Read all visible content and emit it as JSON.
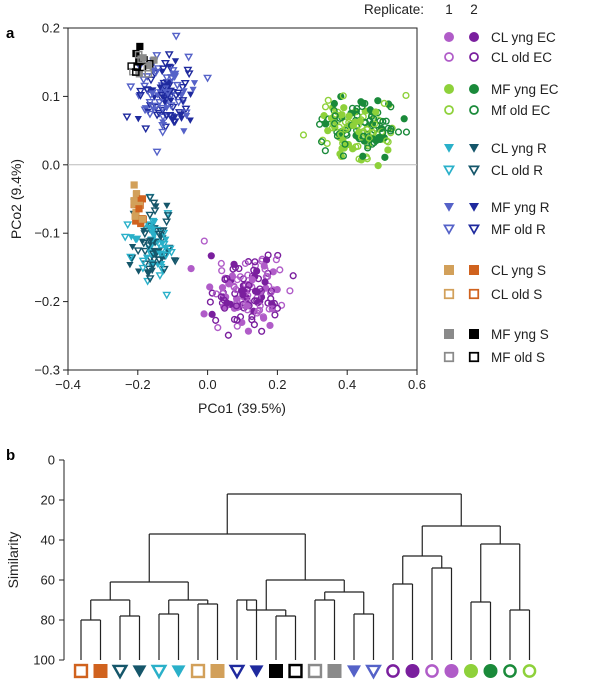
{
  "legend": {
    "header": "Replicate:",
    "replicates": [
      "1",
      "2"
    ],
    "entries": [
      {
        "label": "CL yng EC",
        "shape": "circle-filled",
        "colors": [
          "#b05cc8",
          "#7a1f9e"
        ]
      },
      {
        "label": "CL old EC",
        "shape": "circle-open",
        "colors": [
          "#b05cc8",
          "#7a1f9e"
        ]
      },
      {
        "label": "MF yng EC",
        "shape": "circle-filled",
        "colors": [
          "#8ed13a",
          "#1a8a3a"
        ]
      },
      {
        "label": "Mf old EC",
        "shape": "circle-open",
        "colors": [
          "#8ed13a",
          "#1a8a3a"
        ]
      },
      {
        "label": "CL yng R",
        "shape": "tri-filled",
        "colors": [
          "#2ab0c9",
          "#15566a"
        ]
      },
      {
        "label": "CL old R",
        "shape": "tri-open",
        "colors": [
          "#2ab0c9",
          "#15566a"
        ]
      },
      {
        "label": "MF yng R",
        "shape": "tri-filled",
        "colors": [
          "#5562c8",
          "#1f2a9e"
        ]
      },
      {
        "label": "MF old R",
        "shape": "tri-open",
        "colors": [
          "#5562c8",
          "#1f2a9e"
        ]
      },
      {
        "label": "CL yng S",
        "shape": "square-filled",
        "colors": [
          "#d2a05a",
          "#d0621e"
        ]
      },
      {
        "label": "CL old S",
        "shape": "square-open",
        "colors": [
          "#d2a05a",
          "#d0621e"
        ]
      },
      {
        "label": "MF yng S",
        "shape": "square-filled",
        "colors": [
          "#8a8a8a",
          "#000000"
        ]
      },
      {
        "label": "MF old S",
        "shape": "square-open",
        "colors": [
          "#8a8a8a",
          "#000000"
        ]
      }
    ]
  },
  "chart_data": [
    {
      "type": "scatter",
      "panel": "a",
      "xlabel": "PCo1 (39.5%)",
      "ylabel": "PCo2 (9.4%)",
      "xlim": [
        -0.4,
        0.6
      ],
      "ylim": [
        -0.3,
        0.2
      ],
      "xticks": [
        "−0.4",
        "−0.2",
        "0.0",
        "0.2",
        "0.4",
        "0.6"
      ],
      "yticks": [
        "0.2",
        "0.1",
        "0.0",
        "−0.1",
        "−0.2",
        "−0.3"
      ],
      "reference_line_y": 0.0,
      "clusters": [
        {
          "group": "MF R",
          "shape": "tri-open",
          "colors": [
            "#5562c8",
            "#1f2a9e"
          ],
          "center": [
            -0.12,
            0.1
          ],
          "spread": [
            0.06,
            0.04
          ],
          "n": 130
        },
        {
          "group": "MF S",
          "shape": "square-open",
          "colors": [
            "#8a8a8a",
            "#000000"
          ],
          "center": [
            -0.19,
            0.15
          ],
          "spread": [
            0.02,
            0.015
          ],
          "n": 20
        },
        {
          "group": "CL R",
          "shape": "tri-open",
          "colors": [
            "#2ab0c9",
            "#15566a"
          ],
          "center": [
            -0.16,
            -0.12
          ],
          "spread": [
            0.04,
            0.04
          ],
          "n": 110
        },
        {
          "group": "CL S",
          "shape": "square-filled",
          "colors": [
            "#d2a05a",
            "#d0621e"
          ],
          "center": [
            -0.2,
            -0.06
          ],
          "spread": [
            0.015,
            0.025
          ],
          "n": 22
        },
        {
          "group": "CL EC",
          "shape": "circle-open",
          "colors": [
            "#b05cc8",
            "#7a1f9e"
          ],
          "center": [
            0.12,
            -0.19
          ],
          "spread": [
            0.08,
            0.04
          ],
          "n": 150
        },
        {
          "group": "MF EC",
          "shape": "circle-open",
          "colors": [
            "#8ed13a",
            "#1a8a3a"
          ],
          "center": [
            0.43,
            0.05
          ],
          "spread": [
            0.08,
            0.03
          ],
          "n": 170
        }
      ]
    },
    {
      "type": "dendrogram",
      "panel": "b",
      "ylabel": "Similarity",
      "ylim": [
        100,
        0
      ],
      "yticks": [
        0,
        20,
        40,
        60,
        80,
        100
      ],
      "leaves": [
        {
          "shape": "square-open",
          "color": "#d0621e"
        },
        {
          "shape": "square-filled",
          "color": "#d0621e"
        },
        {
          "shape": "tri-open",
          "color": "#15566a"
        },
        {
          "shape": "tri-filled",
          "color": "#15566a"
        },
        {
          "shape": "tri-open",
          "color": "#2ab0c9"
        },
        {
          "shape": "tri-filled",
          "color": "#2ab0c9"
        },
        {
          "shape": "square-open",
          "color": "#d2a05a"
        },
        {
          "shape": "square-filled",
          "color": "#d2a05a"
        },
        {
          "shape": "tri-open",
          "color": "#1f2a9e"
        },
        {
          "shape": "tri-filled",
          "color": "#1f2a9e"
        },
        {
          "shape": "square-filled",
          "color": "#000000"
        },
        {
          "shape": "square-open",
          "color": "#000000"
        },
        {
          "shape": "square-open",
          "color": "#8a8a8a"
        },
        {
          "shape": "square-filled",
          "color": "#8a8a8a"
        },
        {
          "shape": "tri-filled",
          "color": "#5562c8"
        },
        {
          "shape": "tri-open",
          "color": "#5562c8"
        },
        {
          "shape": "circle-open",
          "color": "#7a1f9e"
        },
        {
          "shape": "circle-filled",
          "color": "#7a1f9e"
        },
        {
          "shape": "circle-open",
          "color": "#b05cc8"
        },
        {
          "shape": "circle-filled",
          "color": "#b05cc8"
        },
        {
          "shape": "circle-filled",
          "color": "#8ed13a"
        },
        {
          "shape": "circle-filled",
          "color": "#1a8a3a"
        },
        {
          "shape": "circle-open",
          "color": "#1a8a3a"
        },
        {
          "shape": "circle-open",
          "color": "#8ed13a"
        }
      ],
      "merges": [
        {
          "a": "L0",
          "b": "L1",
          "h": 80,
          "id": "c1"
        },
        {
          "a": "L2",
          "b": "L3",
          "h": 78,
          "id": "c2"
        },
        {
          "a": "L4",
          "b": "L5",
          "h": 77,
          "id": "c3"
        },
        {
          "a": "L6",
          "b": "L7",
          "h": 72,
          "id": "c4"
        },
        {
          "a": "c1",
          "b": "c2",
          "h": 70,
          "id": "c5"
        },
        {
          "a": "c3",
          "b": "c4",
          "h": 70,
          "id": "c6"
        },
        {
          "a": "c5",
          "b": "c6",
          "h": 61,
          "id": "c7"
        },
        {
          "a": "L8",
          "b": "L9",
          "h": 70,
          "id": "c8"
        },
        {
          "a": "L10",
          "b": "L11",
          "h": 78,
          "id": "c9"
        },
        {
          "a": "L12",
          "b": "L13",
          "h": 70,
          "id": "c10"
        },
        {
          "a": "L14",
          "b": "L15",
          "h": 77,
          "id": "c11"
        },
        {
          "a": "c8",
          "b": "c9",
          "h": 75,
          "id": "c12"
        },
        {
          "a": "c10",
          "b": "c11",
          "h": 66,
          "id": "c13"
        },
        {
          "a": "c12",
          "b": "c13",
          "h": 60,
          "id": "c14"
        },
        {
          "a": "c7",
          "b": "c14",
          "h": 37,
          "id": "c15"
        },
        {
          "a": "L16",
          "b": "L17",
          "h": 62,
          "id": "c16"
        },
        {
          "a": "L18",
          "b": "L19",
          "h": 54,
          "id": "c17"
        },
        {
          "a": "c16",
          "b": "c17",
          "h": 48,
          "id": "c18"
        },
        {
          "a": "L20",
          "b": "L21",
          "h": 71,
          "id": "c19"
        },
        {
          "a": "L22",
          "b": "L23",
          "h": 75,
          "id": "c20"
        },
        {
          "a": "c19",
          "b": "c20",
          "h": 42,
          "id": "c21"
        },
        {
          "a": "c18",
          "b": "c21",
          "h": 33,
          "id": "c22"
        },
        {
          "a": "c15",
          "b": "c22",
          "h": 17,
          "id": "root"
        }
      ]
    }
  ]
}
